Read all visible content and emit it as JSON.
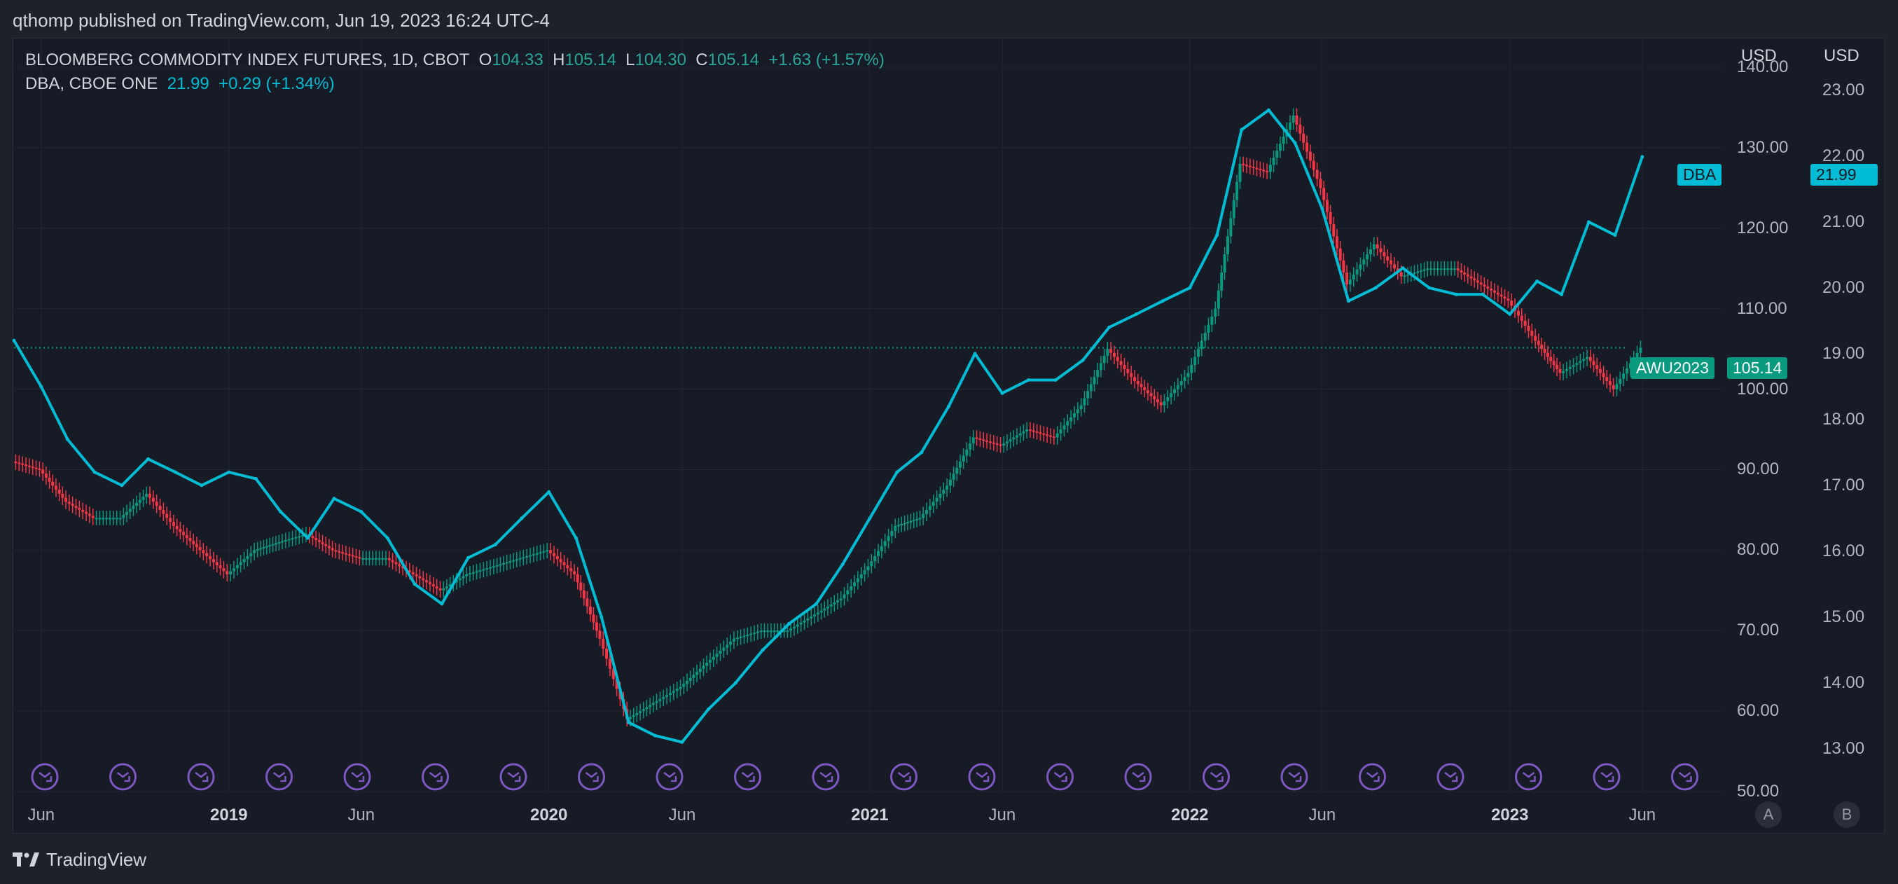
{
  "header": {
    "published": "qthomp published on TradingView.com, Jun 19, 2023 16:24 UTC-4"
  },
  "legend": {
    "line1": {
      "title": "BLOOMBERG COMMODITY INDEX FUTURES, 1D, CBOT",
      "o_label": "O",
      "o": "104.33",
      "h_label": "H",
      "h": "105.14",
      "l_label": "L",
      "l": "104.30",
      "c_label": "C",
      "c": "105.14",
      "change": "+1.63 (+1.57%)"
    },
    "line2": {
      "title": "DBA, CBOE ONE",
      "value": "21.99",
      "change": "+0.29 (+1.34%)"
    }
  },
  "axes": {
    "left_currency": "USD",
    "right_currency": "USD"
  },
  "tags": {
    "dba_name": "DBA",
    "dba_value": "21.99",
    "awu_name": "AWU2023",
    "awu_value": "105.14"
  },
  "buttons": {
    "a": "A",
    "b": "B"
  },
  "footer": {
    "brand": "TradingView"
  },
  "colors": {
    "dba": "#00bcd4",
    "up": "#089981",
    "down": "#f23645",
    "background": "#171b26",
    "grid": "#232632",
    "event_icon": "#7e57c2"
  },
  "chart_data": {
    "type": "line",
    "title": "BLOOMBERG COMMODITY INDEX FUTURES, 1D, CBOT",
    "x_ticks": [
      "Jun",
      "2019",
      "Jun",
      "2020",
      "Jun",
      "2021",
      "Jun",
      "2022",
      "Jun",
      "2023",
      "Jun"
    ],
    "x_tick_dates": [
      "2018-06",
      "2019-01",
      "2019-06",
      "2020-01",
      "2020-06",
      "2021-01",
      "2021-06",
      "2022-01",
      "2022-06",
      "2023-01",
      "2023-06"
    ],
    "y_left": {
      "label": "USD",
      "range": [
        50,
        140
      ],
      "ticks": [
        "50.00",
        "60.00",
        "70.00",
        "80.00",
        "90.00",
        "100.00",
        "110.00",
        "120.00",
        "130.00",
        "140.00"
      ]
    },
    "y_right": {
      "label": "USD",
      "range": [
        12.35,
        23.35
      ],
      "ticks": [
        "13.00",
        "14.00",
        "15.00",
        "16.00",
        "17.00",
        "18.00",
        "19.00",
        "20.00",
        "21.00",
        "22.00",
        "23.00"
      ]
    },
    "series": [
      {
        "name": "BLOOMBERG COMMODITY INDEX FUTURES",
        "style": "candles",
        "axis": "left",
        "points": [
          [
            "2018-05",
            91
          ],
          [
            "2018-06",
            90
          ],
          [
            "2018-07",
            86
          ],
          [
            "2018-08",
            84
          ],
          [
            "2018-09",
            84
          ],
          [
            "2018-10",
            87
          ],
          [
            "2018-11",
            83
          ],
          [
            "2018-12",
            80
          ],
          [
            "2019-01",
            77
          ],
          [
            "2019-02",
            80
          ],
          [
            "2019-03",
            81
          ],
          [
            "2019-04",
            82
          ],
          [
            "2019-05",
            80
          ],
          [
            "2019-06",
            79
          ],
          [
            "2019-07",
            79
          ],
          [
            "2019-08",
            77
          ],
          [
            "2019-09",
            75
          ],
          [
            "2019-10",
            77
          ],
          [
            "2019-11",
            78
          ],
          [
            "2019-12",
            79
          ],
          [
            "2020-01",
            80
          ],
          [
            "2020-02",
            77
          ],
          [
            "2020-03",
            69
          ],
          [
            "2020-04",
            59
          ],
          [
            "2020-05",
            61
          ],
          [
            "2020-06",
            63
          ],
          [
            "2020-07",
            66
          ],
          [
            "2020-08",
            69
          ],
          [
            "2020-09",
            70
          ],
          [
            "2020-10",
            70
          ],
          [
            "2020-11",
            72
          ],
          [
            "2020-12",
            74
          ],
          [
            "2021-01",
            78
          ],
          [
            "2021-02",
            83
          ],
          [
            "2021-03",
            84
          ],
          [
            "2021-04",
            88
          ],
          [
            "2021-05",
            94
          ],
          [
            "2021-06",
            93
          ],
          [
            "2021-07",
            95
          ],
          [
            "2021-08",
            94
          ],
          [
            "2021-09",
            98
          ],
          [
            "2021-10",
            105
          ],
          [
            "2021-11",
            101
          ],
          [
            "2021-12",
            98
          ],
          [
            "2022-01",
            102
          ],
          [
            "2022-02",
            110
          ],
          [
            "2022-03",
            128
          ],
          [
            "2022-04",
            127
          ],
          [
            "2022-05",
            134
          ],
          [
            "2022-06",
            125
          ],
          [
            "2022-07",
            113
          ],
          [
            "2022-08",
            118
          ],
          [
            "2022-09",
            114
          ],
          [
            "2022-10",
            115
          ],
          [
            "2022-11",
            115
          ],
          [
            "2022-12",
            113
          ],
          [
            "2023-01",
            111
          ],
          [
            "2023-02",
            106
          ],
          [
            "2023-03",
            102
          ],
          [
            "2023-04",
            104
          ],
          [
            "2023-05",
            100
          ],
          [
            "2023-06",
            105.14
          ]
        ]
      },
      {
        "name": "DBA",
        "style": "line",
        "axis": "right",
        "points": [
          [
            "2018-05",
            19.2
          ],
          [
            "2018-06",
            18.5
          ],
          [
            "2018-07",
            17.7
          ],
          [
            "2018-08",
            17.2
          ],
          [
            "2018-09",
            17.0
          ],
          [
            "2018-10",
            17.4
          ],
          [
            "2018-11",
            17.2
          ],
          [
            "2018-12",
            17.0
          ],
          [
            "2019-01",
            17.2
          ],
          [
            "2019-02",
            17.1
          ],
          [
            "2019-03",
            16.6
          ],
          [
            "2019-04",
            16.2
          ],
          [
            "2019-05",
            16.8
          ],
          [
            "2019-06",
            16.6
          ],
          [
            "2019-07",
            16.2
          ],
          [
            "2019-08",
            15.5
          ],
          [
            "2019-09",
            15.2
          ],
          [
            "2019-10",
            15.9
          ],
          [
            "2019-11",
            16.1
          ],
          [
            "2019-12",
            16.5
          ],
          [
            "2020-01",
            16.9
          ],
          [
            "2020-02",
            16.2
          ],
          [
            "2020-03",
            15.0
          ],
          [
            "2020-04",
            13.4
          ],
          [
            "2020-05",
            13.2
          ],
          [
            "2020-06",
            13.1
          ],
          [
            "2020-07",
            13.6
          ],
          [
            "2020-08",
            14.0
          ],
          [
            "2020-09",
            14.5
          ],
          [
            "2020-10",
            14.9
          ],
          [
            "2020-11",
            15.2
          ],
          [
            "2020-12",
            15.8
          ],
          [
            "2021-01",
            16.5
          ],
          [
            "2021-02",
            17.2
          ],
          [
            "2021-03",
            17.5
          ],
          [
            "2021-04",
            18.2
          ],
          [
            "2021-05",
            19.0
          ],
          [
            "2021-06",
            18.4
          ],
          [
            "2021-07",
            18.6
          ],
          [
            "2021-08",
            18.6
          ],
          [
            "2021-09",
            18.9
          ],
          [
            "2021-10",
            19.4
          ],
          [
            "2021-11",
            19.6
          ],
          [
            "2021-12",
            19.8
          ],
          [
            "2022-01",
            20.0
          ],
          [
            "2022-02",
            20.8
          ],
          [
            "2022-03",
            22.4
          ],
          [
            "2022-04",
            22.7
          ],
          [
            "2022-05",
            22.2
          ],
          [
            "2022-06",
            21.2
          ],
          [
            "2022-07",
            19.8
          ],
          [
            "2022-08",
            20.0
          ],
          [
            "2022-09",
            20.3
          ],
          [
            "2022-10",
            20.0
          ],
          [
            "2022-11",
            19.9
          ],
          [
            "2022-12",
            19.9
          ],
          [
            "2023-01",
            19.6
          ],
          [
            "2023-02",
            20.1
          ],
          [
            "2023-03",
            19.9
          ],
          [
            "2023-04",
            21.0
          ],
          [
            "2023-05",
            20.8
          ],
          [
            "2023-06",
            21.99
          ]
        ]
      }
    ],
    "price_line": {
      "value": 105.14,
      "axis": "left"
    },
    "events_count": 22
  }
}
